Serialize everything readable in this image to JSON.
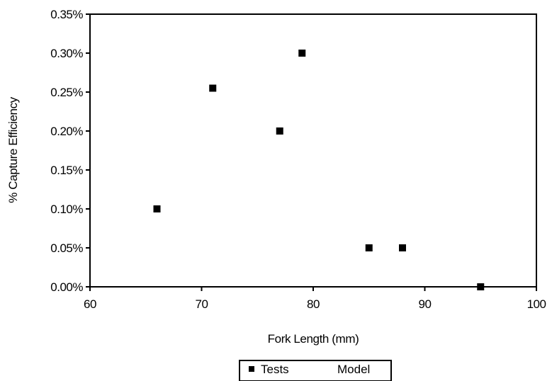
{
  "chart_data": {
    "type": "scatter",
    "title": "",
    "xlabel": "Fork Length (mm)",
    "ylabel": "% Capture Efficiency",
    "xlim": [
      60,
      100
    ],
    "ylim": [
      0,
      0.0035
    ],
    "x_ticks": [
      "60",
      "70",
      "80",
      "90",
      "100"
    ],
    "y_ticks": [
      "0.00%",
      "0.05%",
      "0.10%",
      "0.15%",
      "0.20%",
      "0.25%",
      "0.30%",
      "0.35%"
    ],
    "grid": false,
    "legend": {
      "position": "bottom",
      "entries": [
        "Tests",
        "Model"
      ]
    },
    "series": [
      {
        "name": "Tests",
        "marker": "square",
        "color": "#000000",
        "x": [
          66,
          71,
          77,
          79,
          85,
          88,
          95
        ],
        "y": [
          0.001,
          0.00255,
          0.002,
          0.003,
          0.0005,
          0.0005,
          0.0
        ]
      },
      {
        "name": "Model",
        "marker": "none",
        "color": "#000000",
        "x": [],
        "y": []
      }
    ]
  }
}
